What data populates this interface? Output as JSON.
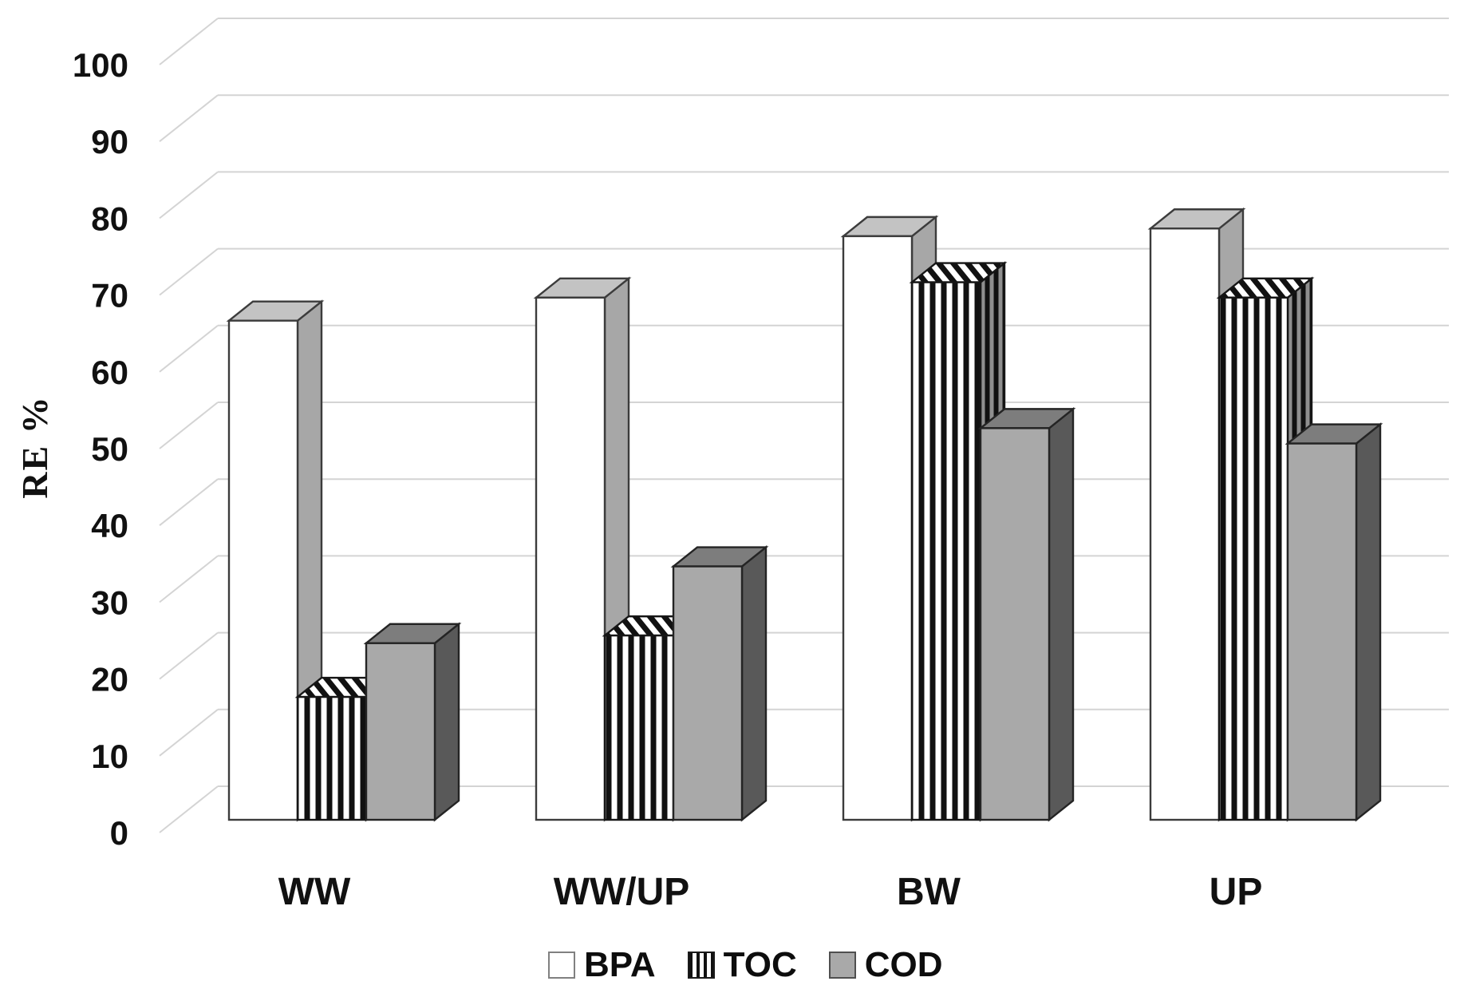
{
  "chart_data": {
    "type": "bar",
    "style": "3d-clustered-column",
    "title": "",
    "xlabel": "",
    "ylabel": "RE %",
    "ylim": [
      0,
      100
    ],
    "ytick_step": 10,
    "yticks": [
      0,
      10,
      20,
      30,
      40,
      50,
      60,
      70,
      80,
      90,
      100
    ],
    "categories": [
      "WW",
      "WW/UP",
      "BW",
      "UP"
    ],
    "series": [
      {
        "name": "BPA",
        "fill_style": "white",
        "values": [
          65,
          68,
          76,
          77
        ]
      },
      {
        "name": "TOC",
        "fill_style": "vertical-stripes",
        "values": [
          16,
          24,
          70,
          68
        ]
      },
      {
        "name": "COD",
        "fill_style": "gray",
        "values": [
          23,
          33,
          51,
          49
        ]
      }
    ],
    "grid": true,
    "legend_position": "bottom-center"
  },
  "colors": {
    "background": "#ffffff",
    "gridline": "#d4d4d4",
    "axis_text": "#111111",
    "bpa_front": "#ffffff",
    "bpa_top": "#c3c3c3",
    "bpa_side": "#a7a7a7",
    "bpa_stroke": "#3c3c3c",
    "toc_bg": "#ffffff",
    "toc_stripe": "#111111",
    "toc_side_bg": "#8f8f8f",
    "toc_stroke": "#161616",
    "cod_front": "#a9a9a9",
    "cod_top": "#7d7d7d",
    "cod_side": "#595959",
    "cod_stroke": "#242424",
    "legend_bpa_border": "#808080",
    "legend_toc_border": "#1a1a1a",
    "legend_cod_border": "#4f4f4f"
  }
}
